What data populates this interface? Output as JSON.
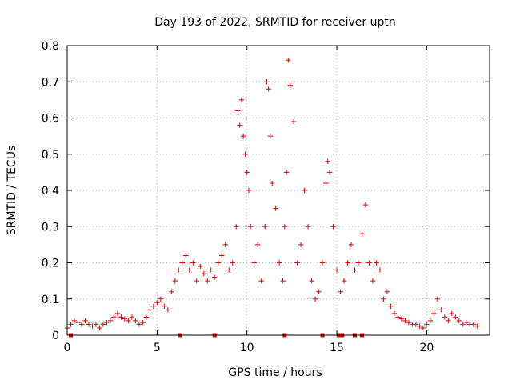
{
  "chart_data": {
    "type": "scatter",
    "title": "Day 193 of 2022, SRMTID for receiver uptn",
    "xlabel": "GPS time / hours",
    "ylabel": "SRMTID / TECUs",
    "xlim": [
      0,
      23.5
    ],
    "ylim": [
      0,
      0.8
    ],
    "xticks": [
      "0",
      "5",
      "10",
      "15",
      "20"
    ],
    "yticks": [
      "0",
      "0.1",
      "0.2",
      "0.3",
      "0.4",
      "0.5",
      "0.6",
      "0.7",
      "0.8"
    ],
    "grid": true,
    "marker": "plus",
    "color": "#dd0000",
    "series": [
      {
        "name": "SRMTID",
        "x": [
          0.0,
          0.2,
          0.4,
          0.6,
          0.8,
          1.0,
          1.2,
          1.4,
          1.6,
          1.8,
          2.0,
          2.2,
          2.4,
          2.6,
          2.8,
          3.0,
          3.2,
          3.4,
          3.6,
          3.8,
          4.0,
          4.2,
          4.4,
          4.6,
          4.8,
          5.0,
          5.2,
          5.4,
          5.6,
          5.8,
          6.0,
          6.2,
          6.4,
          6.6,
          6.8,
          7.0,
          7.2,
          7.4,
          7.6,
          7.8,
          8.0,
          8.2,
          8.4,
          8.6,
          8.8,
          9.0,
          9.2,
          9.4,
          9.5,
          9.6,
          9.7,
          9.8,
          9.9,
          10.0,
          10.1,
          10.2,
          10.4,
          10.6,
          10.8,
          11.0,
          11.1,
          11.2,
          11.3,
          11.4,
          11.6,
          11.8,
          12.0,
          12.1,
          12.2,
          12.3,
          12.4,
          12.6,
          12.8,
          13.0,
          13.2,
          13.4,
          13.6,
          13.8,
          14.0,
          14.2,
          14.4,
          14.5,
          14.6,
          14.8,
          15.0,
          15.2,
          15.4,
          15.6,
          15.8,
          16.0,
          16.2,
          16.4,
          16.6,
          16.8,
          17.0,
          17.2,
          17.4,
          17.6,
          17.8,
          18.0,
          18.2,
          18.4,
          18.6,
          18.8,
          19.0,
          19.2,
          19.4,
          19.6,
          19.8,
          20.0,
          20.2,
          20.4,
          20.6,
          20.8,
          21.0,
          21.2,
          21.4,
          21.6,
          21.8,
          22.0,
          22.2,
          22.4,
          22.6,
          22.8
        ],
        "y": [
          0.02,
          0.03,
          0.04,
          0.035,
          0.03,
          0.04,
          0.03,
          0.025,
          0.03,
          0.02,
          0.03,
          0.035,
          0.04,
          0.05,
          0.06,
          0.05,
          0.045,
          0.04,
          0.05,
          0.04,
          0.03,
          0.035,
          0.05,
          0.07,
          0.08,
          0.09,
          0.1,
          0.08,
          0.07,
          0.12,
          0.15,
          0.18,
          0.2,
          0.22,
          0.18,
          0.2,
          0.15,
          0.19,
          0.17,
          0.15,
          0.18,
          0.16,
          0.2,
          0.22,
          0.25,
          0.18,
          0.2,
          0.3,
          0.62,
          0.58,
          0.65,
          0.55,
          0.5,
          0.45,
          0.4,
          0.3,
          0.2,
          0.25,
          0.15,
          0.3,
          0.7,
          0.68,
          0.55,
          0.42,
          0.35,
          0.2,
          0.15,
          0.3,
          0.45,
          0.76,
          0.69,
          0.59,
          0.2,
          0.25,
          0.4,
          0.3,
          0.15,
          0.1,
          0.12,
          0.2,
          0.42,
          0.48,
          0.45,
          0.3,
          0.18,
          0.12,
          0.15,
          0.2,
          0.25,
          0.18,
          0.2,
          0.28,
          0.36,
          0.2,
          0.15,
          0.2,
          0.18,
          0.1,
          0.12,
          0.08,
          0.06,
          0.05,
          0.045,
          0.04,
          0.035,
          0.03,
          0.03,
          0.025,
          0.02,
          0.03,
          0.04,
          0.06,
          0.1,
          0.07,
          0.05,
          0.04,
          0.06,
          0.05,
          0.04,
          0.03,
          0.035,
          0.03,
          0.03,
          0.025
        ]
      }
    ],
    "baseline_markers_x": [
      0.2,
      6.3,
      8.2,
      12.1,
      14.2,
      15.1,
      15.3,
      16.0,
      16.4
    ]
  }
}
